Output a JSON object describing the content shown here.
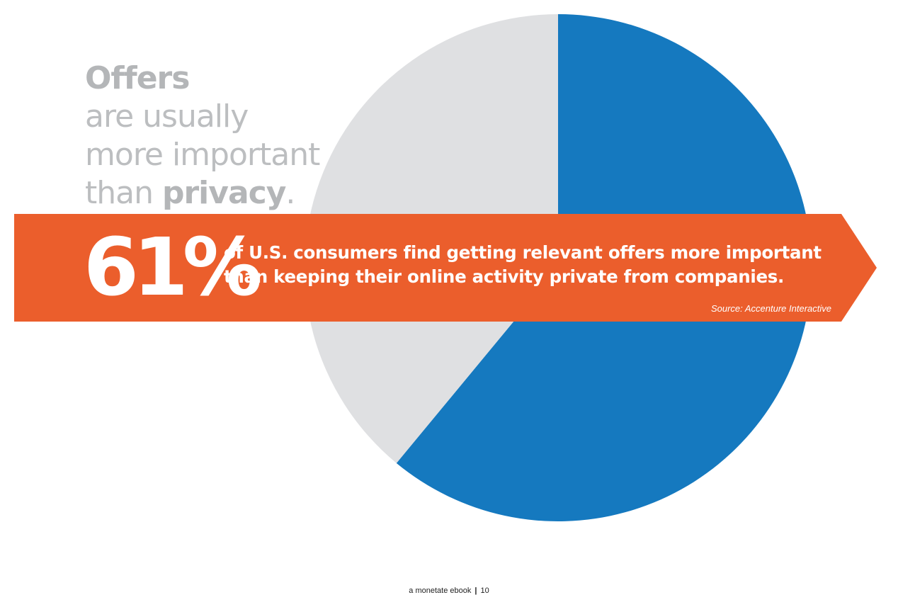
{
  "chart_data": {
    "type": "pie",
    "series": [
      {
        "name": "Offers more important",
        "value": 61,
        "color": "#1579bf"
      },
      {
        "name": "Privacy more important",
        "value": 39,
        "color": "#dfe0e2"
      }
    ]
  },
  "headline": {
    "word1": "Offers",
    "line2": "are usually",
    "line3": "more important",
    "line4_prefix": "than ",
    "line4_bold": "privacy",
    "line4_suffix": "."
  },
  "banner": {
    "stat": "61%",
    "line1": "of U.S. consumers find getting relevant offers more important",
    "line2": "than keeping their online activity private from companies.",
    "source": "Source: Accenture Interactive",
    "color": "#eb5e2c"
  },
  "footer": {
    "brand": "a monetate ebook",
    "separator": "|",
    "page": "10"
  }
}
